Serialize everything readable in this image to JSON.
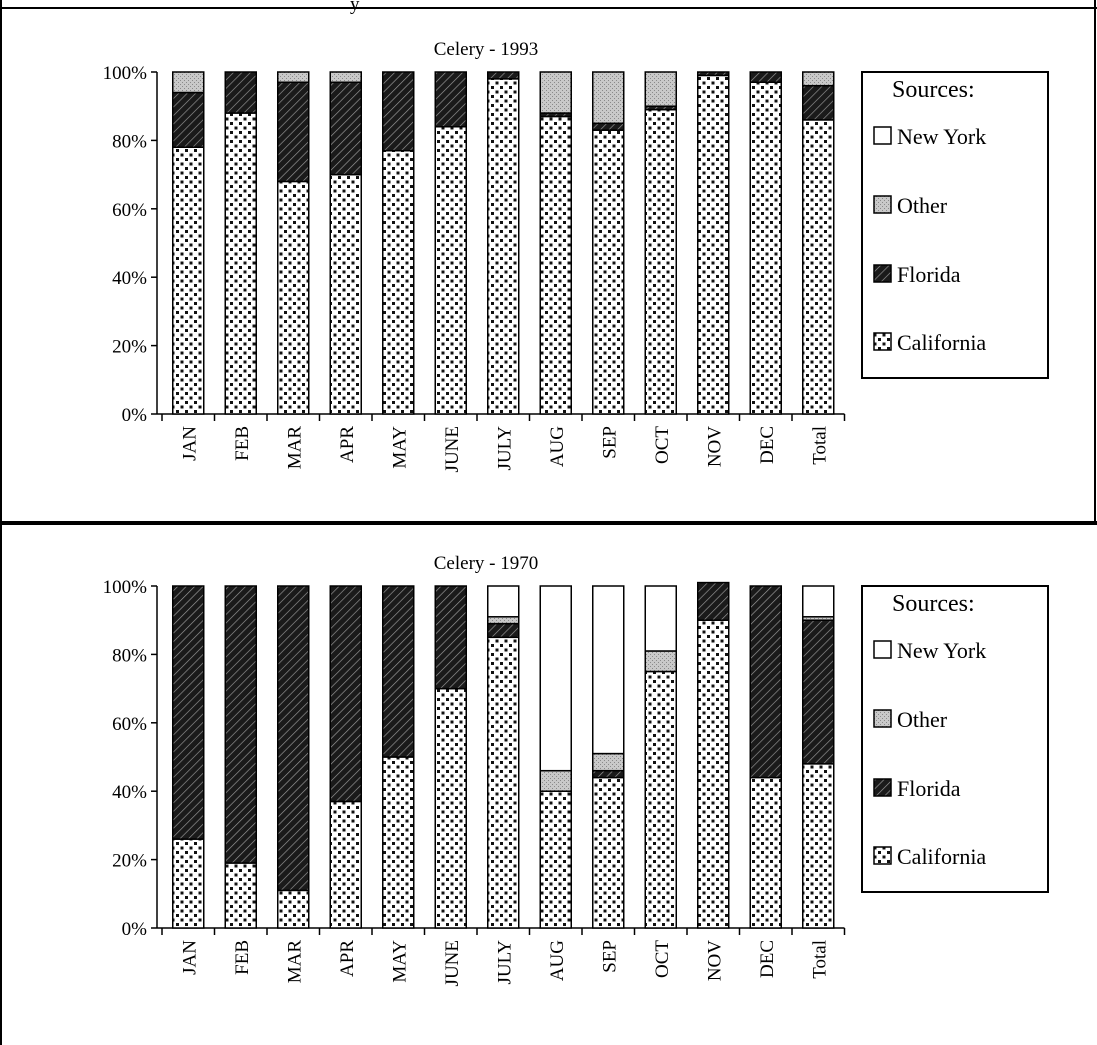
{
  "figure": {
    "header_fragment": "y"
  },
  "legend": {
    "title": "Sources:",
    "items": [
      "New York",
      "Other",
      "Florida",
      "California"
    ]
  },
  "chart_data": [
    {
      "type": "bar",
      "stacked": true,
      "title": "Celery - 1993",
      "xlabel": "",
      "ylabel": "",
      "ylim": [
        0,
        100
      ],
      "y_ticks": [
        "0%",
        "20%",
        "40%",
        "60%",
        "80%",
        "100%"
      ],
      "categories": [
        "JAN",
        "FEB",
        "MAR",
        "APR",
        "MAY",
        "JUNE",
        "JULY",
        "AUG",
        "SEP",
        "OCT",
        "NOV",
        "DEC",
        "Total"
      ],
      "legend_position": "right",
      "series": [
        {
          "name": "California",
          "values": [
            78,
            88,
            68,
            70,
            77,
            84,
            98,
            87,
            83,
            89,
            99,
            97,
            86
          ]
        },
        {
          "name": "Florida",
          "values": [
            16,
            12,
            29,
            27,
            23,
            16,
            2,
            1,
            2,
            1,
            1,
            3,
            10
          ]
        },
        {
          "name": "Other",
          "values": [
            6,
            0,
            3,
            3,
            0,
            0,
            0,
            12,
            15,
            10,
            0,
            0,
            4
          ]
        },
        {
          "name": "New York",
          "values": [
            0,
            0,
            0,
            0,
            0,
            0,
            0,
            0,
            0,
            0,
            0,
            0,
            0
          ]
        }
      ]
    },
    {
      "type": "bar",
      "stacked": true,
      "title": "Celery - 1970",
      "xlabel": "",
      "ylabel": "",
      "ylim": [
        0,
        100
      ],
      "y_ticks": [
        "0%",
        "20%",
        "40%",
        "60%",
        "80%",
        "100%"
      ],
      "categories": [
        "JAN",
        "FEB",
        "MAR",
        "APR",
        "MAY",
        "JUNE",
        "JULY",
        "AUG",
        "SEP",
        "OCT",
        "NOV",
        "DEC",
        "Total"
      ],
      "legend_position": "right",
      "series": [
        {
          "name": "California",
          "values": [
            26,
            19,
            11,
            37,
            50,
            70,
            85,
            40,
            44,
            75,
            90,
            44,
            48
          ]
        },
        {
          "name": "Florida",
          "values": [
            74,
            81,
            89,
            63,
            50,
            30,
            4,
            0,
            2,
            0,
            11,
            56,
            42
          ]
        },
        {
          "name": "Other",
          "values": [
            0,
            0,
            0,
            0,
            0,
            0,
            2,
            6,
            5,
            6,
            0,
            0,
            1
          ]
        },
        {
          "name": "New York",
          "values": [
            0,
            0,
            0,
            0,
            0,
            0,
            9,
            54,
            49,
            19,
            0,
            0,
            9
          ]
        }
      ]
    }
  ]
}
